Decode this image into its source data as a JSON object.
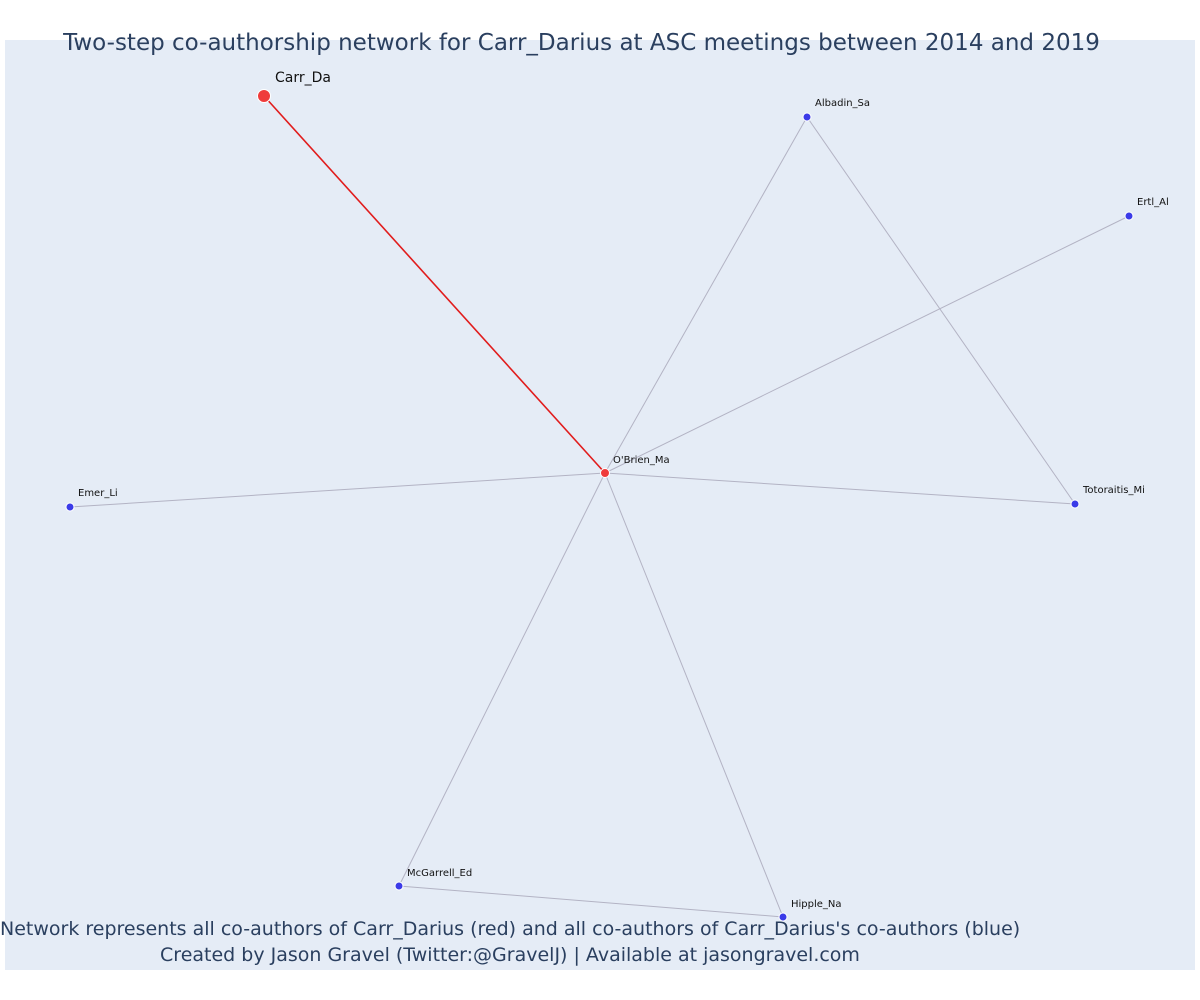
{
  "title": "Two-step co-authorship network for Carr_Darius at ASC meetings between 2014 and 2019",
  "caption_line1": "Network represents all co-authors of Carr_Darius (red) and all co-authors of Carr_Darius's co-authors (blue)",
  "caption_line2": "Created by Jason Gravel (Twitter:@GravelJ) | Available at jasongravel.com",
  "colors": {
    "focal_node": "#ef3b3b",
    "coauthor_node": "#ef3b3b",
    "second_step_node": "#3b3be8",
    "focal_edge": "#e11c1c",
    "other_edge": "#b3b3c4",
    "background": "#e5ecf6",
    "text": "#2a3f5f"
  },
  "nodes": [
    {
      "id": "Carr_Da",
      "label": "Carr_Da",
      "group": "focal"
    },
    {
      "id": "O'Brien_Ma",
      "label": "O'Brien_Ma",
      "group": "coauthor"
    },
    {
      "id": "Albadin_Sa",
      "label": "Albadin_Sa",
      "group": "second_step"
    },
    {
      "id": "Ertl_Al",
      "label": "Ertl_Al",
      "group": "second_step"
    },
    {
      "id": "Totoraitis_Mi",
      "label": "Totoraitis_Mi",
      "group": "second_step"
    },
    {
      "id": "Emer_Li",
      "label": "Emer_Li",
      "group": "second_step"
    },
    {
      "id": "McGarrell_Ed",
      "label": "McGarrell_Ed",
      "group": "second_step"
    },
    {
      "id": "Hipple_Na",
      "label": "Hipple_Na",
      "group": "second_step"
    }
  ],
  "edges": [
    {
      "source": "Carr_Da",
      "target": "O'Brien_Ma",
      "type": "focal"
    },
    {
      "source": "O'Brien_Ma",
      "target": "Albadin_Sa",
      "type": "other"
    },
    {
      "source": "O'Brien_Ma",
      "target": "Ertl_Al",
      "type": "other"
    },
    {
      "source": "O'Brien_Ma",
      "target": "Totoraitis_Mi",
      "type": "other"
    },
    {
      "source": "O'Brien_Ma",
      "target": "Emer_Li",
      "type": "other"
    },
    {
      "source": "O'Brien_Ma",
      "target": "McGarrell_Ed",
      "type": "other"
    },
    {
      "source": "O'Brien_Ma",
      "target": "Hipple_Na",
      "type": "other"
    },
    {
      "source": "Albadin_Sa",
      "target": "Totoraitis_Mi",
      "type": "other"
    },
    {
      "source": "McGarrell_Ed",
      "target": "Hipple_Na",
      "type": "other"
    }
  ]
}
